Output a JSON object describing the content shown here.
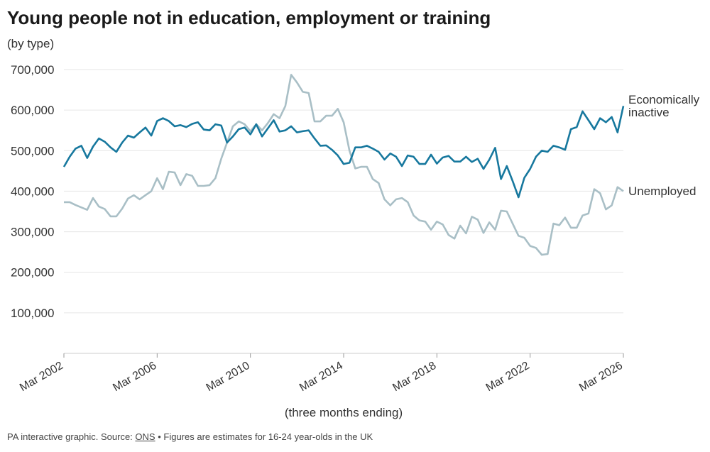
{
  "chart_data": {
    "type": "line",
    "title": "Young people not in education, employment or training",
    "subtitle": "(by type)",
    "x_label": "(three months ending)",
    "source_prefix": "PA interactive graphic. Source:",
    "source_link": "ONS",
    "source_note": "• Figures are estimates for 16-24 year-olds in the UK",
    "categories": [
      "Mar 2002",
      null,
      null,
      null,
      null,
      null,
      null,
      null,
      null,
      null,
      null,
      null,
      null,
      null,
      null,
      null,
      "Mar 2006",
      null,
      null,
      null,
      null,
      null,
      null,
      null,
      null,
      null,
      null,
      null,
      null,
      null,
      null,
      null,
      "Mar 2010",
      null,
      null,
      null,
      null,
      null,
      null,
      null,
      null,
      null,
      null,
      null,
      null,
      null,
      null,
      null,
      "Mar 2014",
      null,
      null,
      null,
      null,
      null,
      null,
      null,
      null,
      null,
      null,
      null,
      null,
      null,
      null,
      null,
      "Mar 2018",
      null,
      null,
      null,
      null,
      null,
      null,
      null,
      null,
      null,
      null,
      null,
      null,
      null,
      null,
      null,
      "Mar 2022",
      null,
      null,
      null,
      null,
      null,
      null,
      null,
      null,
      null,
      null,
      null,
      null,
      null,
      null,
      null,
      "Mar 2026"
    ],
    "series": [
      {
        "name": "Economically inactive",
        "color": "#17789e",
        "values": [
          460000,
          485000,
          505000,
          512000,
          482000,
          510000,
          530000,
          522000,
          508000,
          497000,
          520000,
          537000,
          532000,
          545000,
          557000,
          537000,
          573000,
          580000,
          573000,
          560000,
          563000,
          558000,
          566000,
          570000,
          552000,
          550000,
          565000,
          562000,
          520000,
          535000,
          553000,
          557000,
          540000,
          565000,
          535000,
          555000,
          575000,
          547000,
          550000,
          560000,
          545000,
          548000,
          550000,
          530000,
          512000,
          513000,
          502000,
          488000,
          467000,
          470000,
          508000,
          508000,
          512000,
          505000,
          497000,
          478000,
          493000,
          485000,
          462000,
          488000,
          485000,
          467000,
          467000,
          490000,
          468000,
          483000,
          487000,
          473000,
          473000,
          485000,
          472000,
          480000,
          455000,
          478000,
          507000,
          430000,
          462000,
          425000,
          385000,
          433000,
          455000,
          485000,
          500000,
          497000,
          512000,
          508000,
          502000,
          553000,
          558000,
          597000,
          575000,
          553000,
          580000,
          570000,
          583000,
          545000,
          610000
        ]
      },
      {
        "name": "Unemployed",
        "color": "#a9bfc6",
        "values": [
          373000,
          373000,
          366000,
          360000,
          354000,
          383000,
          362000,
          356000,
          338000,
          338000,
          357000,
          382000,
          390000,
          380000,
          390000,
          400000,
          432000,
          405000,
          448000,
          446000,
          415000,
          442000,
          438000,
          413000,
          413000,
          415000,
          432000,
          480000,
          520000,
          560000,
          572000,
          565000,
          548000,
          565000,
          550000,
          568000,
          590000,
          580000,
          610000,
          687000,
          668000,
          645000,
          642000,
          572000,
          572000,
          586000,
          586000,
          603000,
          570000,
          500000,
          456000,
          460000,
          460000,
          430000,
          420000,
          380000,
          365000,
          380000,
          383000,
          373000,
          340000,
          328000,
          325000,
          305000,
          325000,
          318000,
          292000,
          283000,
          315000,
          296000,
          337000,
          330000,
          297000,
          323000,
          305000,
          352000,
          350000,
          320000,
          290000,
          285000,
          265000,
          260000,
          243000,
          245000,
          320000,
          316000,
          335000,
          310000,
          310000,
          340000,
          345000,
          405000,
          395000,
          355000,
          365000,
          410000,
          400000
        ]
      }
    ],
    "ylim": [
      0,
      700000
    ],
    "yticks": [
      {
        "value": 100000,
        "label": "100,000"
      },
      {
        "value": 200000,
        "label": "200,000"
      },
      {
        "value": 300000,
        "label": "300,000"
      },
      {
        "value": 400000,
        "label": "400,000"
      },
      {
        "value": 500000,
        "label": "500,000"
      },
      {
        "value": 600000,
        "label": "600,000"
      },
      {
        "value": 700000,
        "label": "700,000"
      }
    ],
    "grid": true
  }
}
